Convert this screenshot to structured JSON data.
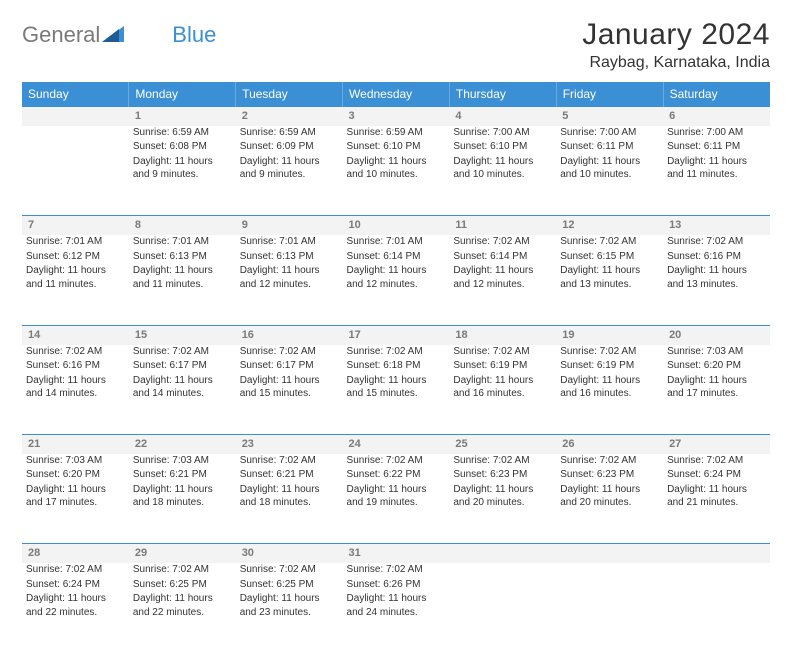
{
  "logo": {
    "text1": "General",
    "text2": "Blue"
  },
  "title": "January 2024",
  "location": "Raybag, Karnataka, India",
  "colors": {
    "header_bg": "#3b8fd4",
    "header_text": "#ffffff",
    "daynum_bg": "#f3f3f3",
    "daynum_text": "#7a7a7a",
    "border": "#3b8fd4",
    "body_text": "#333333",
    "logo_gray": "#7a7a7a",
    "logo_blue": "#3b8fd4"
  },
  "weekdays": [
    "Sunday",
    "Monday",
    "Tuesday",
    "Wednesday",
    "Thursday",
    "Friday",
    "Saturday"
  ],
  "weeks": [
    [
      null,
      {
        "num": "1",
        "sunrise": "6:59 AM",
        "sunset": "6:08 PM",
        "daylight": "11 hours and 9 minutes."
      },
      {
        "num": "2",
        "sunrise": "6:59 AM",
        "sunset": "6:09 PM",
        "daylight": "11 hours and 9 minutes."
      },
      {
        "num": "3",
        "sunrise": "6:59 AM",
        "sunset": "6:10 PM",
        "daylight": "11 hours and 10 minutes."
      },
      {
        "num": "4",
        "sunrise": "7:00 AM",
        "sunset": "6:10 PM",
        "daylight": "11 hours and 10 minutes."
      },
      {
        "num": "5",
        "sunrise": "7:00 AM",
        "sunset": "6:11 PM",
        "daylight": "11 hours and 10 minutes."
      },
      {
        "num": "6",
        "sunrise": "7:00 AM",
        "sunset": "6:11 PM",
        "daylight": "11 hours and 11 minutes."
      }
    ],
    [
      {
        "num": "7",
        "sunrise": "7:01 AM",
        "sunset": "6:12 PM",
        "daylight": "11 hours and 11 minutes."
      },
      {
        "num": "8",
        "sunrise": "7:01 AM",
        "sunset": "6:13 PM",
        "daylight": "11 hours and 11 minutes."
      },
      {
        "num": "9",
        "sunrise": "7:01 AM",
        "sunset": "6:13 PM",
        "daylight": "11 hours and 12 minutes."
      },
      {
        "num": "10",
        "sunrise": "7:01 AM",
        "sunset": "6:14 PM",
        "daylight": "11 hours and 12 minutes."
      },
      {
        "num": "11",
        "sunrise": "7:02 AM",
        "sunset": "6:14 PM",
        "daylight": "11 hours and 12 minutes."
      },
      {
        "num": "12",
        "sunrise": "7:02 AM",
        "sunset": "6:15 PM",
        "daylight": "11 hours and 13 minutes."
      },
      {
        "num": "13",
        "sunrise": "7:02 AM",
        "sunset": "6:16 PM",
        "daylight": "11 hours and 13 minutes."
      }
    ],
    [
      {
        "num": "14",
        "sunrise": "7:02 AM",
        "sunset": "6:16 PM",
        "daylight": "11 hours and 14 minutes."
      },
      {
        "num": "15",
        "sunrise": "7:02 AM",
        "sunset": "6:17 PM",
        "daylight": "11 hours and 14 minutes."
      },
      {
        "num": "16",
        "sunrise": "7:02 AM",
        "sunset": "6:17 PM",
        "daylight": "11 hours and 15 minutes."
      },
      {
        "num": "17",
        "sunrise": "7:02 AM",
        "sunset": "6:18 PM",
        "daylight": "11 hours and 15 minutes."
      },
      {
        "num": "18",
        "sunrise": "7:02 AM",
        "sunset": "6:19 PM",
        "daylight": "11 hours and 16 minutes."
      },
      {
        "num": "19",
        "sunrise": "7:02 AM",
        "sunset": "6:19 PM",
        "daylight": "11 hours and 16 minutes."
      },
      {
        "num": "20",
        "sunrise": "7:03 AM",
        "sunset": "6:20 PM",
        "daylight": "11 hours and 17 minutes."
      }
    ],
    [
      {
        "num": "21",
        "sunrise": "7:03 AM",
        "sunset": "6:20 PM",
        "daylight": "11 hours and 17 minutes."
      },
      {
        "num": "22",
        "sunrise": "7:03 AM",
        "sunset": "6:21 PM",
        "daylight": "11 hours and 18 minutes."
      },
      {
        "num": "23",
        "sunrise": "7:02 AM",
        "sunset": "6:21 PM",
        "daylight": "11 hours and 18 minutes."
      },
      {
        "num": "24",
        "sunrise": "7:02 AM",
        "sunset": "6:22 PM",
        "daylight": "11 hours and 19 minutes."
      },
      {
        "num": "25",
        "sunrise": "7:02 AM",
        "sunset": "6:23 PM",
        "daylight": "11 hours and 20 minutes."
      },
      {
        "num": "26",
        "sunrise": "7:02 AM",
        "sunset": "6:23 PM",
        "daylight": "11 hours and 20 minutes."
      },
      {
        "num": "27",
        "sunrise": "7:02 AM",
        "sunset": "6:24 PM",
        "daylight": "11 hours and 21 minutes."
      }
    ],
    [
      {
        "num": "28",
        "sunrise": "7:02 AM",
        "sunset": "6:24 PM",
        "daylight": "11 hours and 22 minutes."
      },
      {
        "num": "29",
        "sunrise": "7:02 AM",
        "sunset": "6:25 PM",
        "daylight": "11 hours and 22 minutes."
      },
      {
        "num": "30",
        "sunrise": "7:02 AM",
        "sunset": "6:25 PM",
        "daylight": "11 hours and 23 minutes."
      },
      {
        "num": "31",
        "sunrise": "7:02 AM",
        "sunset": "6:26 PM",
        "daylight": "11 hours and 24 minutes."
      },
      null,
      null,
      null
    ]
  ],
  "labels": {
    "sunrise": "Sunrise: ",
    "sunset": "Sunset: ",
    "daylight": "Daylight: "
  }
}
